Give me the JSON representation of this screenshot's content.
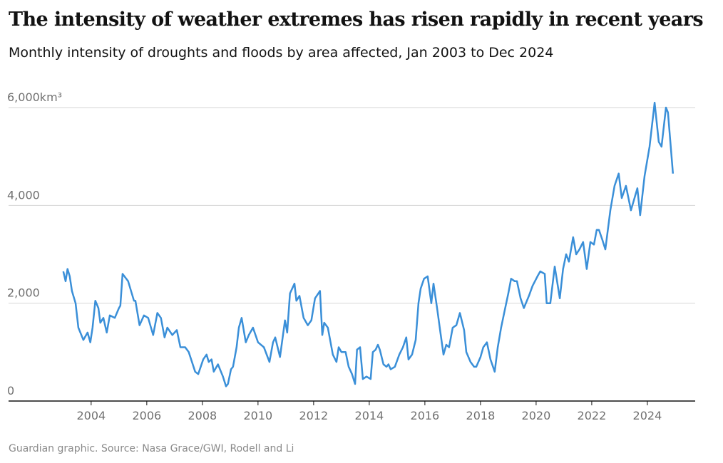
{
  "chart_data": {
    "type": "line",
    "title": "The intensity of weather extremes has risen rapidly in recent years",
    "subtitle": "Monthly intensity of droughts and floods by area affected, Jan 2003 to Dec 2024",
    "source": "Guardian graphic. Source: Nasa Grace/GWI, Rodell and Li",
    "x": [
      2003.0,
      2003.08,
      2003.15,
      2003.23,
      2003.31,
      2003.44,
      2003.54,
      2003.72,
      2003.87,
      2003.97,
      2004.05,
      2004.15,
      2004.26,
      2004.33,
      2004.44,
      2004.56,
      2004.67,
      2004.85,
      2005.0,
      2005.05,
      2005.13,
      2005.33,
      2005.54,
      2005.59,
      2005.74,
      2005.9,
      2006.05,
      2006.23,
      2006.38,
      2006.51,
      2006.64,
      2006.74,
      2006.92,
      2007.08,
      2007.21,
      2007.38,
      2007.51,
      2007.74,
      2007.85,
      2008.03,
      2008.15,
      2008.23,
      2008.33,
      2008.41,
      2008.56,
      2008.74,
      2008.85,
      2008.92,
      2009.03,
      2009.1,
      2009.23,
      2009.31,
      2009.41,
      2009.56,
      2009.67,
      2009.82,
      2010.0,
      2010.21,
      2010.41,
      2010.54,
      2010.62,
      2010.79,
      2010.97,
      2011.05,
      2011.15,
      2011.31,
      2011.38,
      2011.49,
      2011.64,
      2011.79,
      2011.92,
      2012.05,
      2012.23,
      2012.31,
      2012.38,
      2012.51,
      2012.69,
      2012.82,
      2012.9,
      2013.0,
      2013.15,
      2013.26,
      2013.38,
      2013.49,
      2013.56,
      2013.67,
      2013.77,
      2013.9,
      2014.05,
      2014.13,
      2014.23,
      2014.31,
      2014.38,
      2014.51,
      2014.62,
      2014.69,
      2014.77,
      2014.92,
      2015.08,
      2015.21,
      2015.33,
      2015.41,
      2015.54,
      2015.67,
      2015.77,
      2015.85,
      2015.97,
      2016.1,
      2016.23,
      2016.31,
      2016.44,
      2016.56,
      2016.67,
      2016.77,
      2016.87,
      2017.0,
      2017.13,
      2017.26,
      2017.41,
      2017.49,
      2017.64,
      2017.77,
      2017.85,
      2018.0,
      2018.1,
      2018.23,
      2018.36,
      2018.51,
      2018.62,
      2018.74,
      2018.87,
      2019.0,
      2019.1,
      2019.23,
      2019.31,
      2019.44,
      2019.56,
      2019.74,
      2019.87,
      2020.05,
      2020.15,
      2020.31,
      2020.38,
      2020.51,
      2020.67,
      2020.85,
      2020.97,
      2021.08,
      2021.18,
      2021.33,
      2021.44,
      2021.56,
      2021.69,
      2021.82,
      2021.95,
      2022.08,
      2022.18,
      2022.26,
      2022.38,
      2022.49,
      2022.67,
      2022.82,
      2022.97,
      2023.08,
      2023.23,
      2023.41,
      2023.64,
      2023.74,
      2023.9,
      2024.08,
      2024.26,
      2024.41,
      2024.51,
      2024.67,
      2024.74,
      2024.92
    ],
    "series": [
      {
        "color": "#3a8fd8",
        "values": [
          2650,
          2450,
          2700,
          2550,
          2250,
          2000,
          1500,
          1250,
          1400,
          1200,
          1500,
          2050,
          1900,
          1600,
          1700,
          1400,
          1750,
          1700,
          1900,
          1950,
          2600,
          2450,
          2050,
          2050,
          1550,
          1750,
          1700,
          1350,
          1800,
          1700,
          1300,
          1500,
          1350,
          1450,
          1100,
          1100,
          1000,
          600,
          550,
          850,
          950,
          800,
          850,
          600,
          750,
          500,
          300,
          350,
          650,
          700,
          1100,
          1500,
          1700,
          1200,
          1350,
          1500,
          1200,
          1100,
          800,
          1200,
          1300,
          900,
          1650,
          1400,
          2200,
          2400,
          2050,
          2150,
          1700,
          1550,
          1650,
          2100,
          2250,
          1350,
          1600,
          1500,
          950,
          800,
          1100,
          1000,
          1000,
          700,
          550,
          350,
          1050,
          1100,
          450,
          500,
          450,
          1000,
          1050,
          1150,
          1050,
          750,
          700,
          750,
          650,
          700,
          950,
          1100,
          1300,
          850,
          950,
          1250,
          2000,
          2300,
          2500,
          2550,
          2000,
          2400,
          1900,
          1400,
          950,
          1150,
          1100,
          1500,
          1550,
          1800,
          1450,
          1000,
          800,
          700,
          700,
          900,
          1100,
          1200,
          850,
          600,
          1100,
          1500,
          1850,
          2200,
          2500,
          2450,
          2450,
          2100,
          1900,
          2150,
          2350,
          2550,
          2650,
          2600,
          2000,
          2000,
          2750,
          2100,
          2700,
          3000,
          2850,
          3350,
          3000,
          3100,
          3250,
          2700,
          3250,
          3200,
          3500,
          3500,
          3300,
          3100,
          3900,
          4400,
          4650,
          4150,
          4400,
          3900,
          4350,
          3800,
          4600,
          5200,
          6100,
          5300,
          5200,
          6000,
          5900,
          4650
        ]
      }
    ],
    "xlim": [
      2001.03,
      2025.72
    ],
    "xticks": [
      2004,
      2006,
      2008,
      2010,
      2012,
      2014,
      2016,
      2018,
      2020,
      2022,
      2024
    ],
    "ylim": [
      0,
      6000
    ],
    "yticks": [
      0,
      {
        "value": 2000,
        "label": "2,000"
      },
      {
        "value": 4000,
        "label": "4,000"
      },
      {
        "value": 6000,
        "label": "6,000km³"
      }
    ],
    "grid": true
  }
}
